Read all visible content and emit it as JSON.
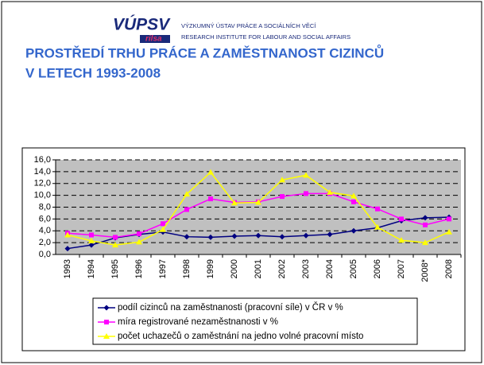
{
  "header": {
    "logo": "VÚPSV",
    "logo_sub": "rilsa",
    "institute_cz": "VÝZKUMNÝ ÚSTAV PRÁCE A SOCIÁLNÍCH VĚCÍ",
    "institute_en": "RESEARCH INSTITUTE FOR LABOUR AND SOCIAL AFFAIRS"
  },
  "title_lines": [
    "PROSTŘEDÍ TRHU PRÁCE A ZAMĚSTNANOST CIZINCŮ",
    "V LETECH 1993-2008"
  ],
  "chart_data": {
    "type": "line",
    "categories": [
      "1993",
      "1994",
      "1995",
      "1996",
      "1997",
      "1998",
      "1999",
      "2000",
      "2001",
      "2002",
      "2003",
      "2004",
      "2005",
      "2006",
      "2007",
      "2008*",
      "2008"
    ],
    "series": [
      {
        "name": "podíl cizinců na zaměstnanosti (pracovní síle) v ČR v %",
        "color": "#000080",
        "marker": "diamond",
        "values": [
          1.0,
          1.6,
          2.8,
          3.4,
          3.8,
          3.0,
          2.9,
          3.1,
          3.2,
          3.0,
          3.2,
          3.4,
          4.0,
          4.5,
          5.7,
          6.2,
          6.3
        ]
      },
      {
        "name": "míra registrované nezaměstnanosti v %",
        "color": "#ff00ff",
        "marker": "square",
        "values": [
          3.6,
          3.3,
          2.9,
          3.5,
          5.2,
          7.6,
          9.4,
          8.8,
          8.9,
          9.8,
          10.3,
          10.3,
          8.9,
          7.7,
          6.0,
          5.0,
          6.0
        ]
      },
      {
        "name": "počet uchazečů o zaměstnání na jedno volné pracovní místo",
        "color": "#ffff00",
        "marker": "triangle",
        "values": [
          3.3,
          2.3,
          1.6,
          2.1,
          4.2,
          10.2,
          13.9,
          8.7,
          8.8,
          12.6,
          13.4,
          10.5,
          9.9,
          4.6,
          2.4,
          2.0,
          3.8
        ]
      }
    ],
    "ylim": [
      0,
      16
    ],
    "yticks": [
      {
        "value": 0,
        "label": "0,0"
      },
      {
        "value": 2,
        "label": "2,0"
      },
      {
        "value": 4,
        "label": "4,0"
      },
      {
        "value": 6,
        "label": "6,0"
      },
      {
        "value": 8,
        "label": "8,0"
      },
      {
        "value": 10,
        "label": "10,0"
      },
      {
        "value": 12,
        "label": "12,0"
      },
      {
        "value": 14,
        "label": "14,0"
      },
      {
        "value": 16,
        "label": "16,0"
      }
    ],
    "grid": true
  }
}
